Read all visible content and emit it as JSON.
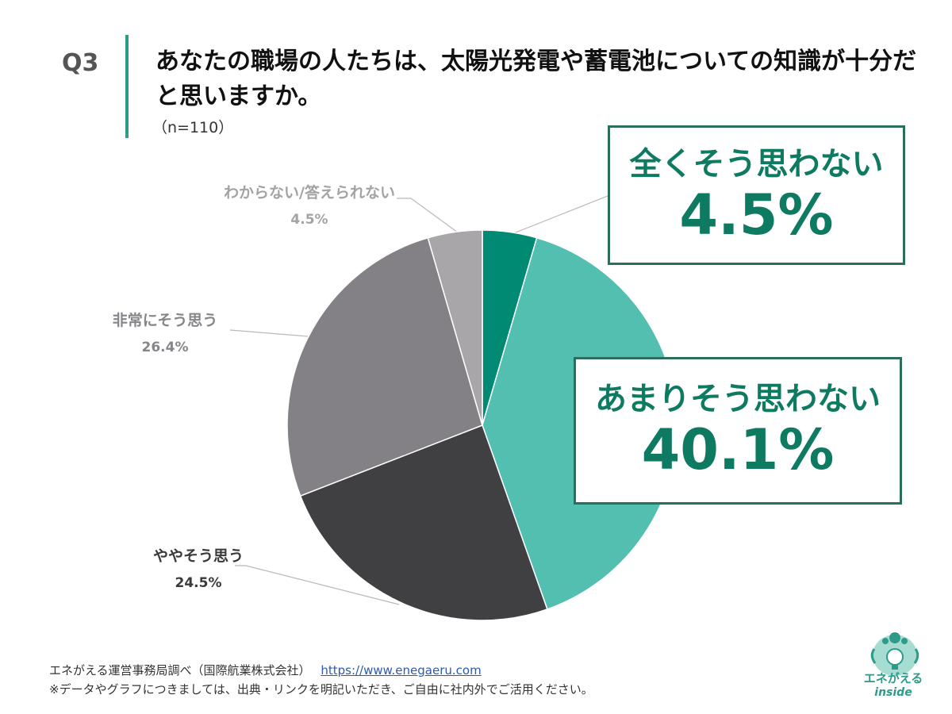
{
  "question": {
    "number": "Q3",
    "title": "あなたの職場の人たちは、太陽光発電や蓄電池についての知識が十分だと思いますか。",
    "sample": "（n=110）"
  },
  "chart_data": {
    "type": "pie",
    "title": "",
    "categories": [
      "全くそう思わない",
      "あまりそう思わない",
      "ややそう思う",
      "非常にそう思う",
      "わからない/答えられない"
    ],
    "values": [
      4.5,
      40.1,
      24.5,
      26.4,
      4.5
    ],
    "value_labels": [
      "4.5%",
      "40.1%",
      "24.5%",
      "26.4%",
      "4.5%"
    ],
    "colors": [
      "#008a73",
      "#52bfb1",
      "#403f41",
      "#838185",
      "#a8a6a8"
    ],
    "start": "12 o'clock, clockwise",
    "legend": "none"
  },
  "labels": {
    "unknown": {
      "name": "わからない/答えられない",
      "value": "4.5%"
    },
    "very": {
      "name": "非常にそう思う",
      "value": "26.4%"
    },
    "somewhat": {
      "name": "ややそう思う",
      "value": "24.5%"
    }
  },
  "callouts": {
    "not_at_all": {
      "name": "全くそう思わない",
      "value": "4.5%"
    },
    "not_much": {
      "name": "あまりそう思わない",
      "value": "40.1%"
    }
  },
  "footer": {
    "source": "エネがえる運営事務局調べ（国際航業株式会社）",
    "url": "https://www.enegaeru.com",
    "note": "※データやグラフにつきましては、出典・リンクを明記いただき、ご自由に社内外でご活用ください。"
  },
  "logo": {
    "name": "エネがえる",
    "sub": "inside"
  }
}
